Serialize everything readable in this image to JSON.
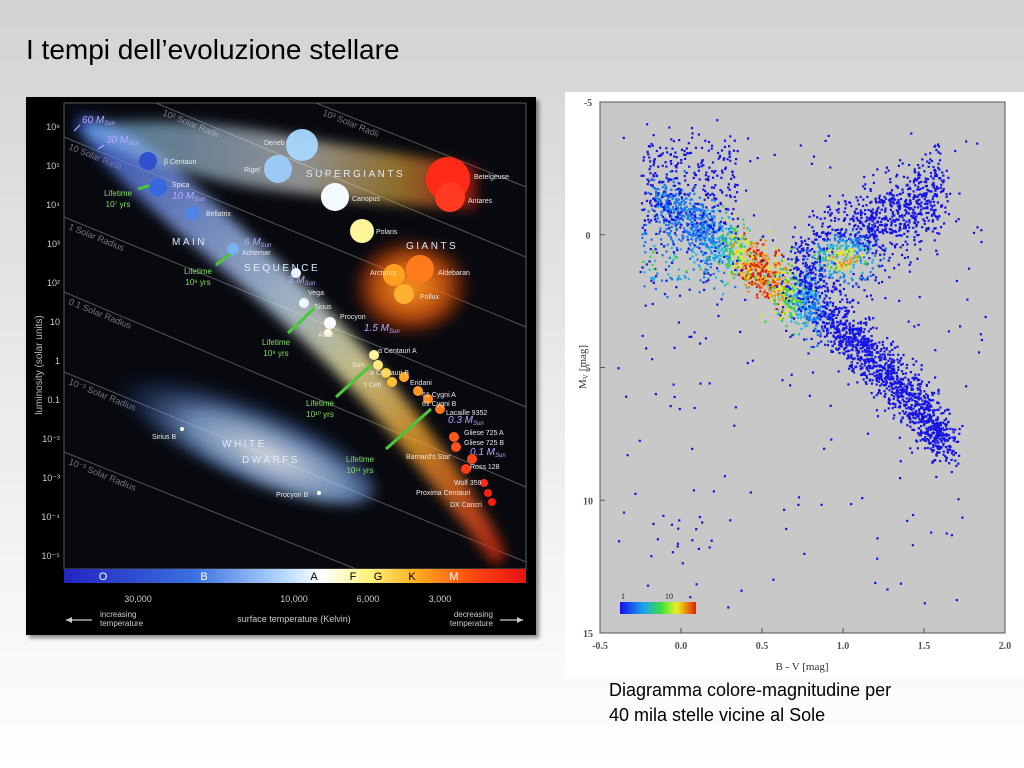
{
  "slide": {
    "title": "I tempi dell’evoluzione stellare",
    "caption_line1": "Diagramma colore-magnitudine per",
    "caption_line2": "40 mila stelle vicine al Sole"
  },
  "hr_diagram": {
    "y_axis_label": "luminosity (solar units)",
    "y_ticks": [
      "10⁶",
      "10⁵",
      "10⁴",
      "10³",
      "10²",
      "10",
      "1",
      "0.1",
      "10⁻²",
      "10⁻³",
      "10⁻⁴",
      "10⁻⁵"
    ],
    "spectral_classes": [
      "O",
      "B",
      "A",
      "F",
      "G",
      "K",
      "M"
    ],
    "temperature_ticks": [
      "30,000",
      "10,000",
      "6,000",
      "3,000"
    ],
    "x_axis_label": "surface temperature (Kelvin)",
    "increasing_1": "increasing",
    "increasing_2": "temperature",
    "decreasing_1": "decreasing",
    "decreasing_2": "temperature",
    "radius_labels": [
      "10³ Solar Radii",
      "10² Solar Radii",
      "10 Solar Radii",
      "1 Solar Radius",
      "0.1 Solar Radius",
      "10⁻² Solar Radius",
      "10⁻³ Solar Radius"
    ],
    "regions": {
      "supergiants": "SUPERGIANTS",
      "giants": "GIANTS",
      "main": "MAIN",
      "sequence": "SEQUENCE",
      "white": "WHITE",
      "dwarfs": "DWARFS"
    },
    "masses": [
      "60 M",
      "30 M",
      "10 M",
      "6 M",
      "3 M",
      "1.5 M",
      "0.3 M",
      "0.1 M"
    ],
    "mass_subscript": "Sun",
    "lifetime_word": "Lifetime",
    "lifetimes": [
      "10⁷ yrs",
      "10⁸ yrs",
      "10⁹ yrs",
      "10¹⁰ yrs",
      "10¹¹ yrs"
    ],
    "stars": [
      "β Centauri",
      "Spica",
      "Bellatrix",
      "Achernar",
      "Deneb",
      "Rigel",
      "Canopus",
      "Polaris",
      "Betelgeuse",
      "Antares",
      "Arcturus",
      "Aldebaran",
      "Pollux",
      "Vega",
      "Sirius",
      "Procyon",
      "Altair",
      "α Centauri A",
      "Sun",
      "α Centauri B",
      "τ Ceti",
      "Eridani",
      "61 Cygni A",
      "61 Cygni B",
      "Lacaille 9352",
      "Gliese 725 A",
      "Gliese 725 B",
      "Barnard's Star",
      "Ross 128",
      "Wolf 359",
      "Proxima Centauri",
      "DX Cancri",
      "Sirius B",
      "Procyon B"
    ]
  },
  "cmd_diagram": {
    "y_label": "M",
    "y_label_sub": "V",
    "y_label_unit": "[mag]",
    "x_label": "B - V [mag]",
    "y_ticks": [
      "-5",
      "0",
      "5",
      "10",
      "15"
    ],
    "x_ticks": [
      "-0.5",
      "0.0",
      "0.5",
      "1.0",
      "1.5",
      "2.0"
    ],
    "colorbar_labels": [
      "1",
      "10"
    ],
    "colors": {
      "plot_bg": "#c8c8c8",
      "low_density": "#1414e6",
      "high_density": "#e61e00"
    }
  }
}
